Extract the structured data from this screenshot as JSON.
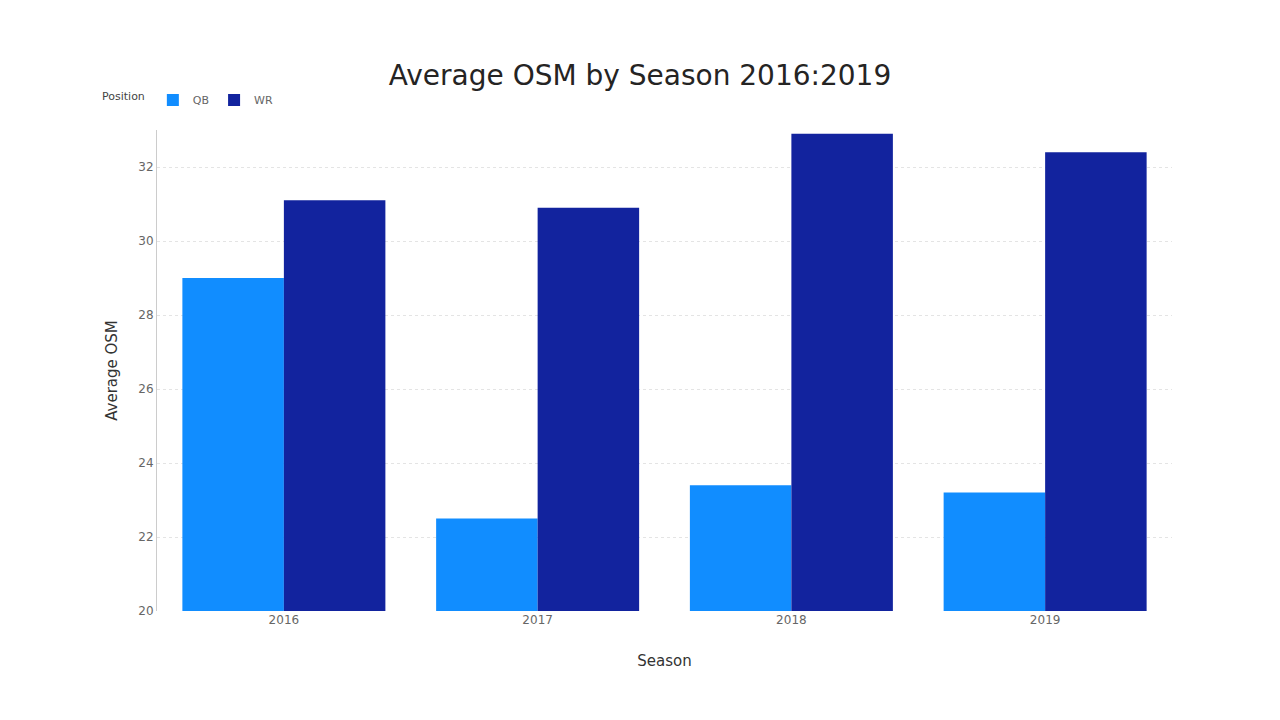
{
  "chart_data": {
    "type": "bar",
    "title": "Average OSM by Season 2016:2019",
    "x_label": "Season",
    "y_label": "Average OSM",
    "legend_title": "Position",
    "categories": [
      "2016",
      "2017",
      "2018",
      "2019"
    ],
    "series": [
      {
        "name": "QB",
        "color": "#118dff",
        "values": [
          29.0,
          22.5,
          23.4,
          23.2
        ]
      },
      {
        "name": "WR",
        "color": "#12239e",
        "values": [
          31.1,
          30.9,
          32.9,
          32.4
        ]
      }
    ],
    "ylim": [
      20,
      33
    ],
    "yticks": [
      20,
      22,
      24,
      26,
      28,
      30,
      32
    ],
    "grid": true,
    "legend": "top-left"
  }
}
